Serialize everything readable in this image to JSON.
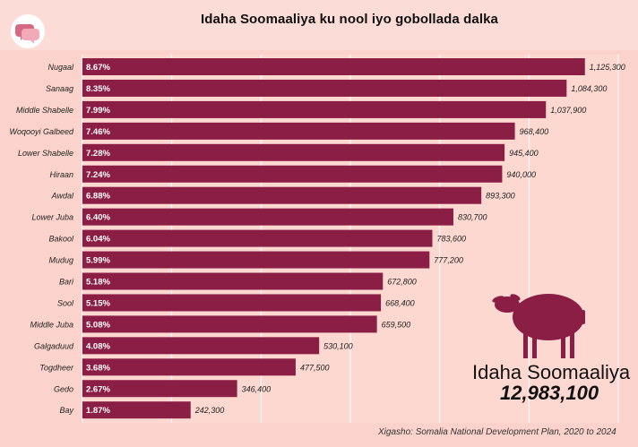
{
  "title": "Idaha Soomaaliya ku nool iyo gobollada dalka",
  "logo_icon": "chat-bubbles-logo-icon",
  "colors": {
    "bar": "#8b1e44",
    "background": "#fbd3cc",
    "sheep": "#8b1e44"
  },
  "chart_data": {
    "type": "bar",
    "orientation": "horizontal",
    "categories": [
      "Nugaal",
      "Sanaag",
      "Middle Shabelle",
      "Woqooyi Galbeed",
      "Lower Shabelle",
      "Hiraan",
      "Awdal",
      "Lower Juba",
      "Bakool",
      "Mudug",
      "Bari",
      "Sool",
      "Middle Juba",
      "Galgaduud",
      "Togdheer",
      "Gedo",
      "Bay"
    ],
    "values": [
      1125300,
      1084300,
      1037900,
      968400,
      945400,
      940000,
      893300,
      830700,
      783600,
      777200,
      672800,
      668400,
      659500,
      530100,
      477500,
      346400,
      242300
    ],
    "value_labels": [
      "1,125,300",
      "1,084,300",
      "1,037,900",
      "968,400",
      "945,400",
      "940,000",
      "893,300",
      "830,700",
      "783,600",
      "777,200",
      "672,800",
      "668,400",
      "659,500",
      "530,100",
      "477,500",
      "346,400",
      "242,300"
    ],
    "percent_labels": [
      "8.67%",
      "8.35%",
      "7.99%",
      "7.46%",
      "7.28%",
      "7.24%",
      "6.88%",
      "6.40%",
      "6.04%",
      "5.99%",
      "5.18%",
      "5.15%",
      "5.08%",
      "4.08%",
      "3.68%",
      "2.67%",
      "1.87%"
    ],
    "xlim": [
      0,
      1200000
    ],
    "grid": true
  },
  "total": {
    "label": "Idaha Soomaaliya",
    "value": "12,983,100",
    "icon": "sheep-icon"
  },
  "source": "Xigasho: Somalia National Development Plan, 2020 to 2024"
}
